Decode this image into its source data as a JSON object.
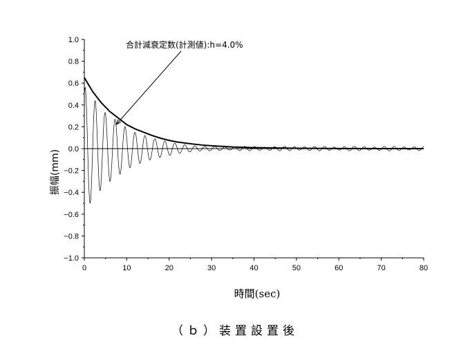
{
  "chart_data": {
    "type": "line",
    "title": "",
    "xlabel": "時間(sec)",
    "ylabel": "振幅(mm)",
    "xlim": [
      0,
      80
    ],
    "ylim": [
      -1.0,
      1.0
    ],
    "x_ticks": [
      0,
      10,
      20,
      30,
      40,
      50,
      60,
      70,
      80
    ],
    "y_ticks": [
      -1.0,
      -0.8,
      -0.6,
      -0.4,
      -0.2,
      0.0,
      0.2,
      0.4,
      0.6,
      0.8,
      1.0
    ],
    "x_tick_labels": [
      "0",
      "10",
      "20",
      "30",
      "40",
      "50",
      "60",
      "70",
      "80"
    ],
    "y_tick_labels": [
      "−1.0",
      "−0.8",
      "−0.6",
      "−0.4",
      "−0.2",
      "0.0",
      "0.2",
      "0.4",
      "0.6",
      "0.8",
      "1.0"
    ],
    "grid": false,
    "series": [
      {
        "style": "thin-oscillation",
        "period_sec": 2.35,
        "peak_times": [
          0.2,
          2.5,
          4.9,
          7.2,
          9.6,
          11.9,
          14.3,
          16.6,
          19.0,
          21.3,
          23.7,
          26.0,
          28.4,
          30.7
        ],
        "peak_values": [
          0.56,
          0.44,
          0.33,
          0.27,
          0.2,
          0.15,
          0.12,
          0.09,
          0.07,
          0.05,
          0.035,
          0.025,
          0.018,
          0.012
        ],
        "trough_values": [
          -0.57,
          -0.44,
          -0.34,
          -0.27,
          -0.21,
          -0.16,
          -0.12,
          -0.09,
          -0.07,
          -0.05,
          -0.035,
          -0.025,
          -0.018,
          -0.012
        ],
        "residual_amplitude": 0.02
      },
      {
        "style": "thick-envelope",
        "formula": "0.65*exp(-0.04*2π*t/2.35)",
        "x": [
          0,
          2,
          4,
          6,
          8,
          10,
          12,
          14,
          16,
          18,
          20,
          22,
          24,
          26,
          28,
          30,
          35,
          40,
          50,
          60,
          70,
          80
        ],
        "values": [
          0.65,
          0.52,
          0.42,
          0.34,
          0.28,
          0.22,
          0.18,
          0.15,
          0.12,
          0.095,
          0.075,
          0.06,
          0.05,
          0.04,
          0.032,
          0.026,
          0.015,
          0.009,
          0.003,
          0.001,
          0.0,
          0.0
        ]
      },
      {
        "style": "zero-line",
        "x": [
          0,
          80
        ],
        "values": [
          0,
          0
        ]
      }
    ],
    "annotation": {
      "text": "合計減衰定数(計測値):h=4.0%",
      "arrow_to_x": 7.5,
      "arrow_to_y": 0.22
    }
  },
  "caption": "（ｂ）装置設置後"
}
